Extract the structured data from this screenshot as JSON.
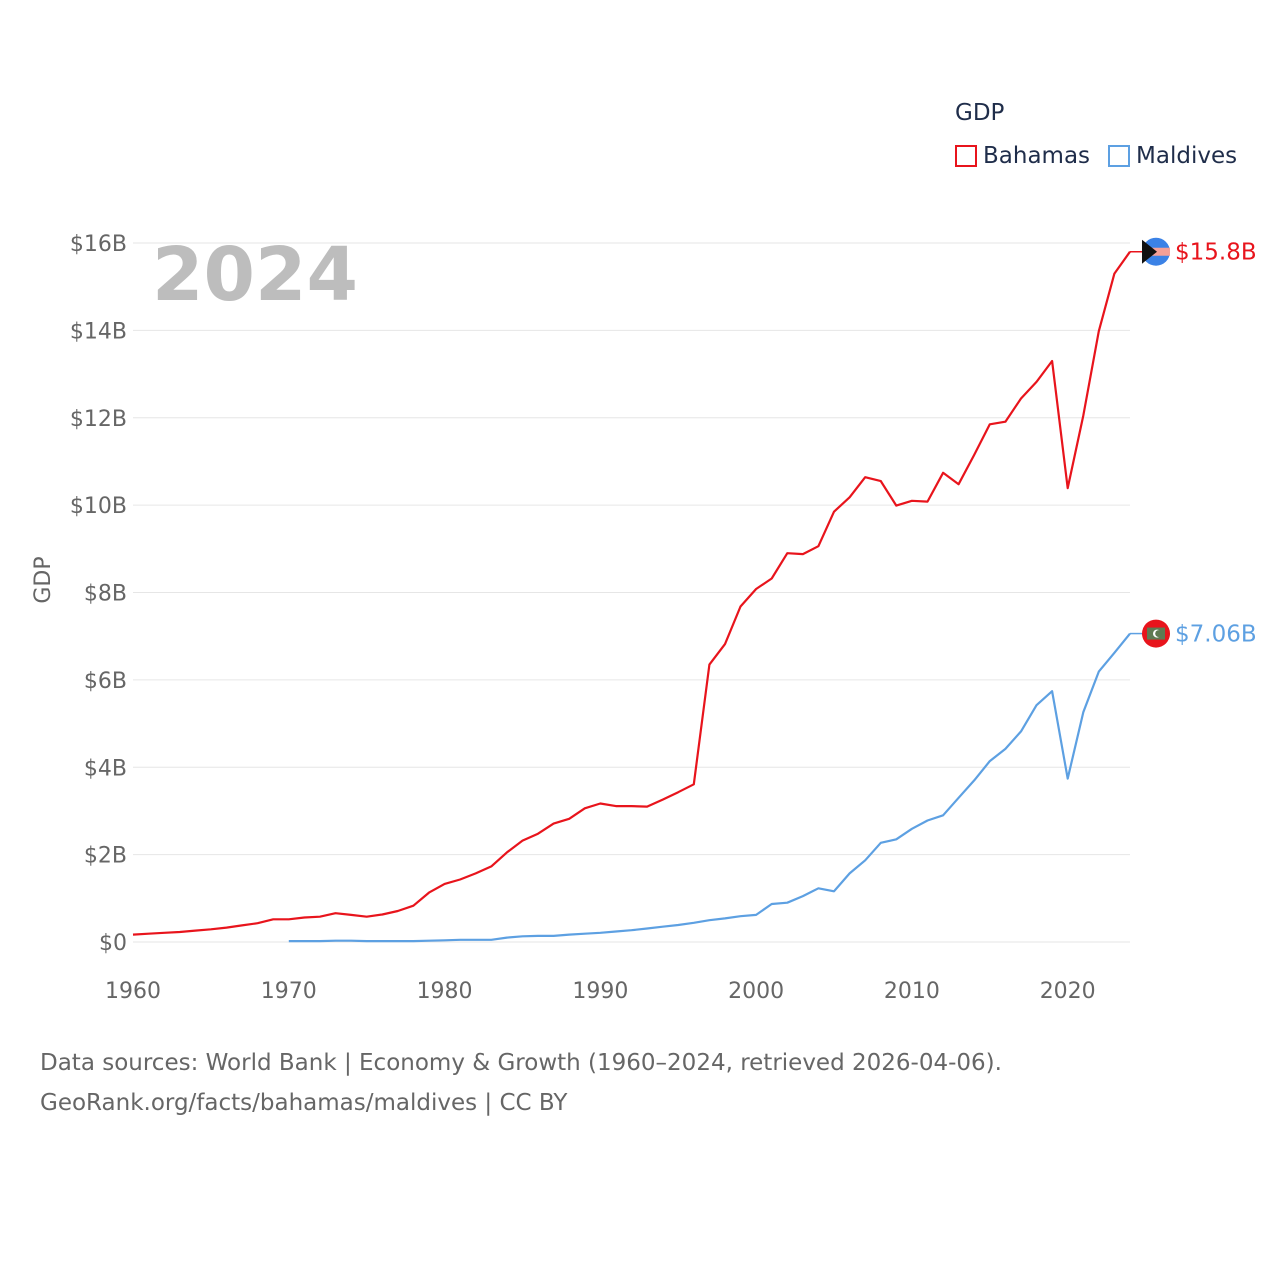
{
  "chart_data": {
    "type": "line",
    "title": "GDP",
    "year_label": "2024",
    "xlabel": "",
    "ylabel": "GDP",
    "xlim": [
      1960,
      2024
    ],
    "ylim": [
      0,
      16
    ],
    "x_ticks": [
      1960,
      1970,
      1980,
      1990,
      2000,
      2010,
      2020
    ],
    "y_ticks": [
      {
        "value": 0,
        "label": "$0"
      },
      {
        "value": 2,
        "label": "$2B"
      },
      {
        "value": 4,
        "label": "$4B"
      },
      {
        "value": 6,
        "label": "$6B"
      },
      {
        "value": 8,
        "label": "$8B"
      },
      {
        "value": 10,
        "label": "$10B"
      },
      {
        "value": 12,
        "label": "$12B"
      },
      {
        "value": 14,
        "label": "$14B"
      },
      {
        "value": 16,
        "label": "$16B"
      }
    ],
    "units": "billions USD",
    "series": [
      {
        "name": "Bahamas",
        "color": "#e8141c",
        "end_label": "$15.8B",
        "points": [
          [
            1960,
            0.17
          ],
          [
            1961,
            0.19
          ],
          [
            1962,
            0.21
          ],
          [
            1963,
            0.23
          ],
          [
            1964,
            0.26
          ],
          [
            1965,
            0.29
          ],
          [
            1966,
            0.33
          ],
          [
            1967,
            0.38
          ],
          [
            1968,
            0.43
          ],
          [
            1969,
            0.52
          ],
          [
            1970,
            0.52
          ],
          [
            1971,
            0.56
          ],
          [
            1972,
            0.58
          ],
          [
            1973,
            0.66
          ],
          [
            1974,
            0.62
          ],
          [
            1975,
            0.58
          ],
          [
            1976,
            0.63
          ],
          [
            1977,
            0.71
          ],
          [
            1978,
            0.83
          ],
          [
            1979,
            1.13
          ],
          [
            1980,
            1.33
          ],
          [
            1981,
            1.43
          ],
          [
            1982,
            1.57
          ],
          [
            1983,
            1.73
          ],
          [
            1984,
            2.05
          ],
          [
            1985,
            2.32
          ],
          [
            1986,
            2.48
          ],
          [
            1987,
            2.71
          ],
          [
            1988,
            2.82
          ],
          [
            1989,
            3.06
          ],
          [
            1990,
            3.17
          ],
          [
            1991,
            3.11
          ],
          [
            1992,
            3.11
          ],
          [
            1993,
            3.1
          ],
          [
            1994,
            3.26
          ],
          [
            1995,
            3.43
          ],
          [
            1996,
            3.61
          ],
          [
            1997,
            6.35
          ],
          [
            1998,
            6.82
          ],
          [
            1999,
            7.68
          ],
          [
            2000,
            8.08
          ],
          [
            2001,
            8.32
          ],
          [
            2002,
            8.9
          ],
          [
            2003,
            8.88
          ],
          [
            2004,
            9.06
          ],
          [
            2005,
            9.85
          ],
          [
            2006,
            10.18
          ],
          [
            2007,
            10.64
          ],
          [
            2008,
            10.55
          ],
          [
            2009,
            9.99
          ],
          [
            2010,
            10.1
          ],
          [
            2011,
            10.08
          ],
          [
            2012,
            10.74
          ],
          [
            2013,
            10.48
          ],
          [
            2014,
            11.15
          ],
          [
            2015,
            11.85
          ],
          [
            2016,
            11.91
          ],
          [
            2017,
            12.44
          ],
          [
            2018,
            12.82
          ],
          [
            2019,
            13.3
          ],
          [
            2020,
            10.39
          ],
          [
            2021,
            12.05
          ],
          [
            2022,
            13.98
          ],
          [
            2023,
            15.3
          ],
          [
            2024,
            15.8
          ]
        ]
      },
      {
        "name": "Maldives",
        "color": "#5da0e2",
        "end_label": "$7.06B",
        "points": [
          [
            1970,
            0.02
          ],
          [
            1971,
            0.02
          ],
          [
            1972,
            0.02
          ],
          [
            1973,
            0.03
          ],
          [
            1974,
            0.03
          ],
          [
            1975,
            0.02
          ],
          [
            1976,
            0.02
          ],
          [
            1977,
            0.02
          ],
          [
            1978,
            0.02
          ],
          [
            1979,
            0.03
          ],
          [
            1980,
            0.04
          ],
          [
            1981,
            0.05
          ],
          [
            1982,
            0.05
          ],
          [
            1983,
            0.05
          ],
          [
            1984,
            0.1
          ],
          [
            1985,
            0.13
          ],
          [
            1986,
            0.14
          ],
          [
            1987,
            0.14
          ],
          [
            1988,
            0.17
          ],
          [
            1989,
            0.19
          ],
          [
            1990,
            0.21
          ],
          [
            1991,
            0.24
          ],
          [
            1992,
            0.27
          ],
          [
            1993,
            0.31
          ],
          [
            1994,
            0.35
          ],
          [
            1995,
            0.39
          ],
          [
            1996,
            0.44
          ],
          [
            1997,
            0.5
          ],
          [
            1998,
            0.54
          ],
          [
            1999,
            0.59
          ],
          [
            2000,
            0.62
          ],
          [
            2001,
            0.87
          ],
          [
            2002,
            0.9
          ],
          [
            2003,
            1.05
          ],
          [
            2004,
            1.23
          ],
          [
            2005,
            1.16
          ],
          [
            2006,
            1.57
          ],
          [
            2007,
            1.87
          ],
          [
            2008,
            2.27
          ],
          [
            2009,
            2.35
          ],
          [
            2010,
            2.59
          ],
          [
            2011,
            2.78
          ],
          [
            2012,
            2.9
          ],
          [
            2013,
            3.3
          ],
          [
            2014,
            3.7
          ],
          [
            2015,
            4.14
          ],
          [
            2016,
            4.42
          ],
          [
            2017,
            4.82
          ],
          [
            2018,
            5.42
          ],
          [
            2019,
            5.74
          ],
          [
            2020,
            3.74
          ],
          [
            2021,
            5.26
          ],
          [
            2022,
            6.19
          ],
          [
            2023,
            6.62
          ],
          [
            2024,
            7.06
          ]
        ]
      }
    ],
    "legend_title": "GDP",
    "legend_position": "top-right"
  },
  "footer": {
    "line1": "Data sources: World Bank | Economy & Growth (1960–2024, retrieved 2026-04-06).",
    "line2": "GeoRank.org/facts/bahamas/maldives | CC BY"
  },
  "colors": {
    "grid": "#e6e6e6",
    "axis_text": "#666666",
    "year_text": "#bdbdbd"
  }
}
